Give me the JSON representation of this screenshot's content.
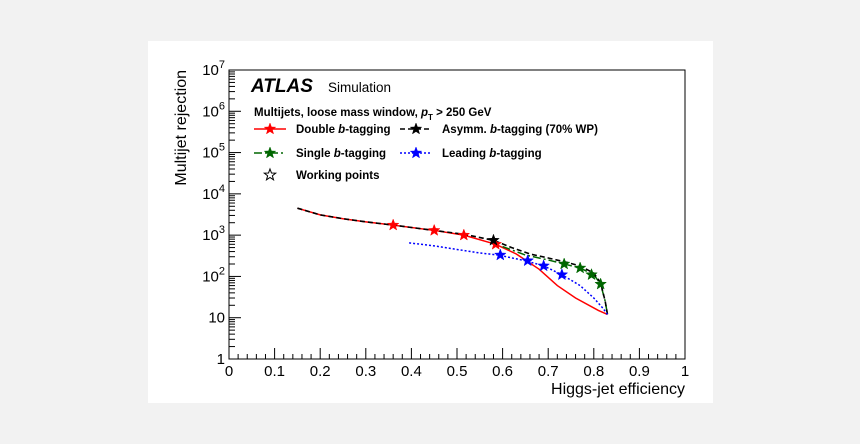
{
  "chart_data": {
    "type": "line",
    "xlabel": "Higgs-jet efficiency",
    "ylabel": "Multijet rejection",
    "xlim": [
      0,
      1
    ],
    "ylim": [
      1,
      10000000
    ],
    "yscale": "log",
    "x_ticks": [
      "0",
      "0.1",
      "0.2",
      "0.3",
      "0.4",
      "0.5",
      "0.6",
      "0.7",
      "0.8",
      "0.9",
      "1"
    ],
    "y_ticks": [
      {
        "value": 1,
        "label": "1"
      },
      {
        "value": 10,
        "label": "10"
      },
      {
        "value": 100,
        "base": "10",
        "exp": "2"
      },
      {
        "value": 1000,
        "base": "10",
        "exp": "3"
      },
      {
        "value": 10000,
        "base": "10",
        "exp": "4"
      },
      {
        "value": 100000,
        "base": "10",
        "exp": "5"
      },
      {
        "value": 1000000,
        "base": "10",
        "exp": "6"
      },
      {
        "value": 10000000,
        "base": "10",
        "exp": "7"
      }
    ],
    "annotation": {
      "experiment": "ATLAS",
      "status": "Simulation",
      "selection_text": "Multijets, loose mass window, ",
      "pt_symbol": "p",
      "pt_subscript": "T",
      "pt_cut": " > 250 GeV"
    },
    "legend": [
      {
        "series": 0,
        "prefix": "Double ",
        "btag": "b",
        "suffix": "-tagging"
      },
      {
        "series": 2,
        "prefix": "Asymm. ",
        "btag": "b",
        "suffix": "-tagging (70% WP)"
      },
      {
        "series": 1,
        "prefix": "Single ",
        "btag": "b",
        "suffix": "-tagging"
      },
      {
        "series": 3,
        "prefix": "Leading ",
        "btag": "b",
        "suffix": "-tagging"
      },
      {
        "series": null,
        "prefix": "Working points",
        "btag": "",
        "suffix": ""
      }
    ],
    "series": [
      {
        "color": "#ff0000",
        "dash": "",
        "x": [
          0.15,
          0.2,
          0.25,
          0.3,
          0.36,
          0.45,
          0.515,
          0.585,
          0.63,
          0.68,
          0.72,
          0.76,
          0.81,
          0.83
        ],
        "y": [
          4500,
          3100,
          2500,
          2100,
          1750,
          1300,
          1000,
          600,
          350,
          150,
          60,
          30,
          15,
          12
        ],
        "markers_x": [
          0.36,
          0.45,
          0.515,
          0.585
        ],
        "markers_y": [
          1750,
          1300,
          1000,
          600
        ]
      },
      {
        "color": "#006600",
        "dash": "8,3,2,3",
        "x": [
          0.6,
          0.65,
          0.7,
          0.735,
          0.77,
          0.8,
          0.815,
          0.825,
          0.83
        ],
        "y": [
          530,
          330,
          250,
          200,
          160,
          110,
          65,
          25,
          12
        ],
        "markers_x": [
          0.735,
          0.77,
          0.795,
          0.815
        ],
        "markers_y": [
          200,
          160,
          110,
          65
        ]
      },
      {
        "color": "#000000",
        "dash": "5,3",
        "x": [
          0.15,
          0.2,
          0.25,
          0.3,
          0.36,
          0.45,
          0.515,
          0.58,
          0.62,
          0.66,
          0.7,
          0.74,
          0.77,
          0.8,
          0.815,
          0.825,
          0.83
        ],
        "y": [
          4500,
          3100,
          2500,
          2100,
          1750,
          1300,
          1050,
          750,
          500,
          350,
          280,
          220,
          180,
          120,
          70,
          25,
          12
        ],
        "markers_x": [
          0.58
        ],
        "markers_y": [
          750
        ]
      },
      {
        "color": "#0000ff",
        "dash": "2,2",
        "x": [
          0.395,
          0.45,
          0.5,
          0.55,
          0.59,
          0.65,
          0.69,
          0.73,
          0.77,
          0.8,
          0.82,
          0.83
        ],
        "y": [
          650,
          550,
          450,
          370,
          330,
          240,
          180,
          110,
          60,
          30,
          17,
          12
        ],
        "markers_x": [
          0.595,
          0.655,
          0.69,
          0.73
        ],
        "markers_y": [
          330,
          240,
          180,
          110
        ]
      }
    ]
  }
}
